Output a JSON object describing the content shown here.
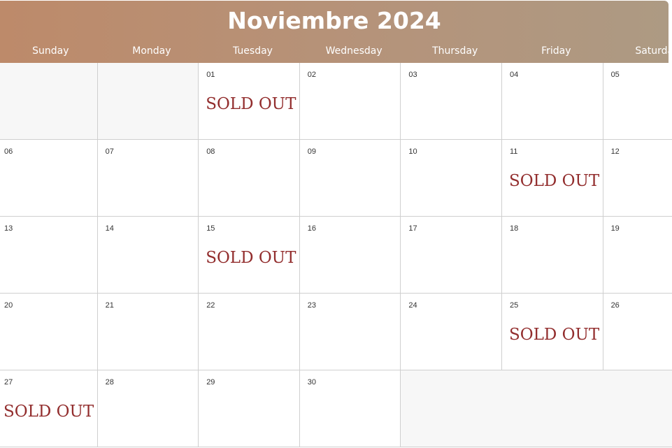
{
  "calendar": {
    "title": "Noviembre 2024",
    "days_of_week": [
      "Sunday",
      "Monday",
      "Tuesday",
      "Wednesday",
      "Thursday",
      "Friday",
      "Saturday"
    ],
    "sold_out_label": "SOLD OUT",
    "weeks": [
      [
        {
          "day": ""
        },
        {
          "day": ""
        },
        {
          "day": "01",
          "sold_out": true
        },
        {
          "day": "02"
        },
        {
          "day": "03"
        },
        {
          "day": "04"
        },
        {
          "day": "05"
        }
      ],
      [
        {
          "day": "06"
        },
        {
          "day": "07"
        },
        {
          "day": "08"
        },
        {
          "day": "09"
        },
        {
          "day": "10"
        },
        {
          "day": "11",
          "sold_out": true
        },
        {
          "day": "12"
        }
      ],
      [
        {
          "day": "13"
        },
        {
          "day": "14"
        },
        {
          "day": "15",
          "sold_out": true
        },
        {
          "day": "16"
        },
        {
          "day": "17"
        },
        {
          "day": "18"
        },
        {
          "day": "19"
        }
      ],
      [
        {
          "day": "20"
        },
        {
          "day": "21"
        },
        {
          "day": "22"
        },
        {
          "day": "23"
        },
        {
          "day": "24"
        },
        {
          "day": "25",
          "sold_out": true
        },
        {
          "day": "26"
        }
      ],
      [
        {
          "day": "27",
          "sold_out": true
        },
        {
          "day": "28"
        },
        {
          "day": "29"
        },
        {
          "day": "30"
        },
        {
          "day": ""
        },
        {
          "day": ""
        },
        {
          "day": ""
        }
      ]
    ]
  },
  "colors": {
    "header_gradient_start": "#bd8a6a",
    "header_gradient_end": "#ad9a83",
    "sold_out": "#922d2d",
    "empty_cell": "#f7f7f7"
  }
}
